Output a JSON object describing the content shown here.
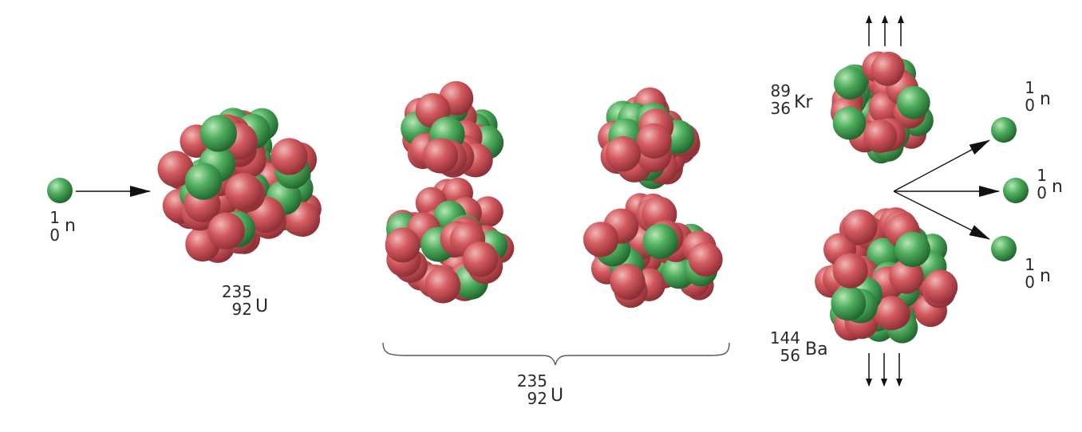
{
  "colors": {
    "proton": "#d35a5f",
    "proton_highlight": "#f2b7b6",
    "proton_shadow": "#8e2f36",
    "neutron": "#4fae5e",
    "neutron_highlight": "#b6e6b6",
    "neutron_shadow": "#21662f",
    "arrow": "#111111",
    "brace": "#555555"
  },
  "labels": {
    "incoming_neutron": {
      "mass": "1",
      "atomic": "0",
      "symbol": "n"
    },
    "uranium": {
      "mass": "235",
      "atomic": "92",
      "symbol": "U"
    },
    "uranium_deformed": {
      "mass": "235",
      "atomic": "92",
      "symbol": "U"
    },
    "krypton": {
      "mass": "89",
      "atomic": "36",
      "symbol": "Kr"
    },
    "barium": {
      "mass": "144",
      "atomic": "56",
      "symbol": "Ba"
    },
    "released_neutron_1": {
      "mass": "1",
      "atomic": "0",
      "symbol": "n"
    },
    "released_neutron_2": {
      "mass": "1",
      "atomic": "0",
      "symbol": "n"
    },
    "released_neutron_3": {
      "mass": "1",
      "atomic": "0",
      "symbol": "n"
    }
  }
}
